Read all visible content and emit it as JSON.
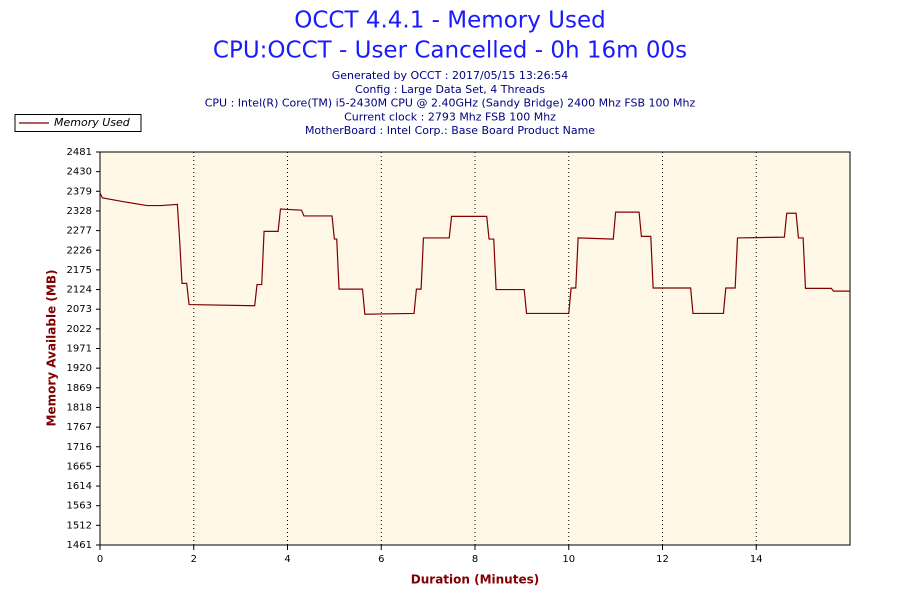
{
  "chart_data": {
    "type": "line",
    "title": "OCCT 4.4.1 - Memory Used",
    "subtitle": "CPU:OCCT - User Cancelled - 0h 16m 00s",
    "annotations": [
      "Generated by OCCT : 2017/05/15 13:26:54",
      "Config : Large Data Set, 4 Threads",
      "CPU : Intel(R) Core(TM) i5-2430M CPU @ 2.40GHz (Sandy Bridge) 2400 Mhz FSB 100 Mhz",
      "Current clock : 2793 Mhz FSB 100 Mhz",
      "MotherBoard : Intel Corp.: Base Board Product Name"
    ],
    "xlabel": "Duration (Minutes)",
    "ylabel": "Memory Available (MB)",
    "x": [
      0,
      0.05,
      0.5,
      1.0,
      1.3,
      1.65,
      1.7,
      1.75,
      1.85,
      1.9,
      3.3,
      3.35,
      3.45,
      3.5,
      3.8,
      3.85,
      4.3,
      4.35,
      4.95,
      5.0,
      5.05,
      5.1,
      5.6,
      5.65,
      6.7,
      6.75,
      6.85,
      6.9,
      7.45,
      7.5,
      8.25,
      8.3,
      8.4,
      8.45,
      9.05,
      9.1,
      10.0,
      10.05,
      10.15,
      10.2,
      10.95,
      11.0,
      11.5,
      11.55,
      11.75,
      11.8,
      12.6,
      12.65,
      13.3,
      13.35,
      13.55,
      13.6,
      14.6,
      14.65,
      14.85,
      14.9,
      15.0,
      15.05,
      15.6,
      15.65,
      16
    ],
    "series": [
      {
        "name": "Memory Used",
        "color": "#800000",
        "values": [
          2375,
          2362,
          2352,
          2342,
          2342,
          2345,
          2250,
          2140,
          2140,
          2085,
          2082,
          2137,
          2137,
          2275,
          2275,
          2333,
          2330,
          2315,
          2315,
          2255,
          2255,
          2125,
          2125,
          2060,
          2062,
          2125,
          2125,
          2258,
          2258,
          2314,
          2314,
          2255,
          2255,
          2124,
          2124,
          2062,
          2062,
          2128,
          2128,
          2258,
          2255,
          2325,
          2325,
          2262,
          2262,
          2128,
          2128,
          2062,
          2062,
          2128,
          2128,
          2258,
          2260,
          2322,
          2322,
          2258,
          2258,
          2127,
          2127,
          2120,
          2120
        ]
      }
    ],
    "xlim": [
      0,
      16
    ],
    "ylim": [
      1461,
      2481
    ],
    "xticks": [
      0,
      2,
      4,
      6,
      8,
      10,
      12,
      14
    ],
    "yticks": [
      1461,
      1512,
      1563,
      1614,
      1665,
      1716,
      1767,
      1818,
      1869,
      1920,
      1971,
      2022,
      2073,
      2124,
      2175,
      2226,
      2277,
      2328,
      2379,
      2430,
      2481
    ],
    "grid": "x",
    "legend": "top-left"
  }
}
